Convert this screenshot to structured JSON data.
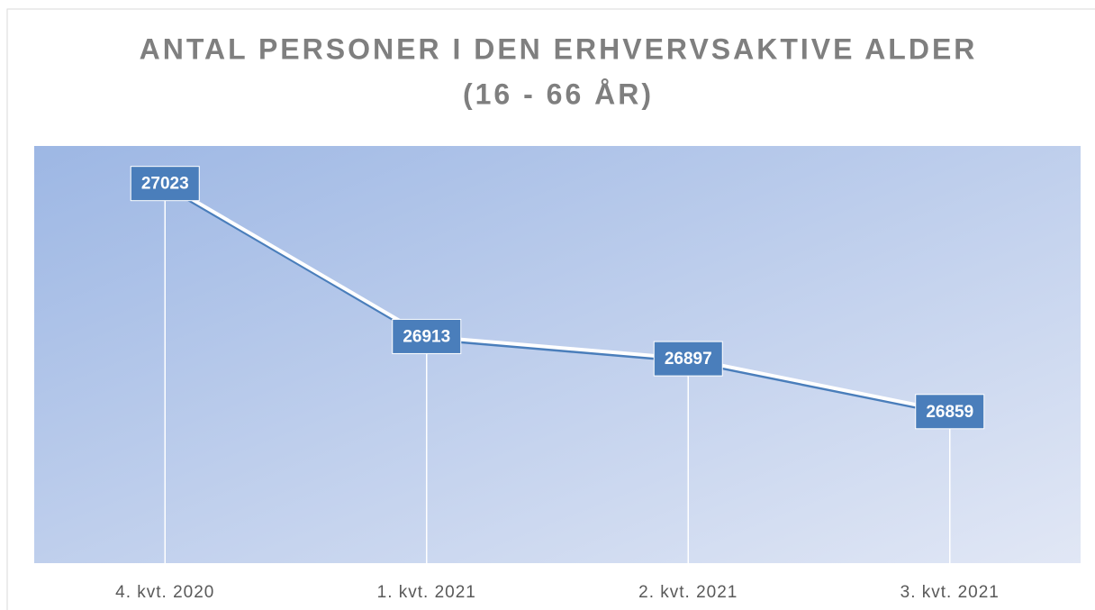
{
  "chart_data": {
    "type": "line",
    "title": [
      "ANTAL PERSONER I DEN ERHVERVSAKTIVE ALDER",
      "(16 - 66 ÅR)"
    ],
    "categories": [
      "4. kvt. 2020",
      "1. kvt. 2021",
      "2. kvt. 2021",
      "3. kvt. 2021"
    ],
    "values": [
      27023,
      26913,
      26897,
      26859
    ],
    "color": "#4a7ebb",
    "ylim": [
      26750,
      27050
    ]
  }
}
